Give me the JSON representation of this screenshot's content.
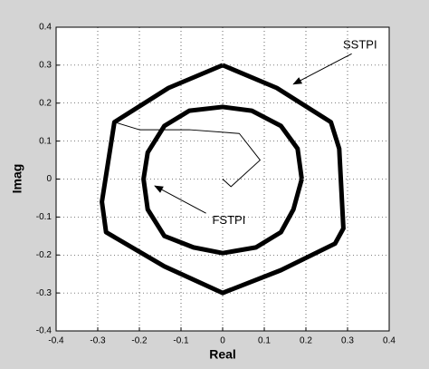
{
  "chart_data": {
    "type": "line",
    "x_label": "Real",
    "y_label": "Imag",
    "xlim": [
      -0.4,
      0.4
    ],
    "ylim": [
      -0.4,
      0.4
    ],
    "xticks": [
      -0.4,
      -0.3,
      -0.2,
      -0.1,
      0,
      0.1,
      0.2,
      0.3,
      0.4
    ],
    "yticks": [
      -0.4,
      -0.3,
      -0.2,
      -0.1,
      0,
      0.1,
      0.2,
      0.3,
      0.4
    ],
    "grid": true,
    "annotations": [
      "SSTPI",
      "FSTPI"
    ],
    "series": [
      {
        "color": "#000000",
        "width": 5,
        "x": [
          0,
          0.13,
          0.26,
          0.28,
          0.29,
          0.27,
          0.14,
          0,
          -0.14,
          -0.28,
          -0.29,
          -0.27,
          -0.26,
          -0.13,
          0
        ],
        "values": [
          0.3,
          0.24,
          0.15,
          0.08,
          -0.13,
          -0.17,
          -0.24,
          -0.3,
          -0.23,
          -0.14,
          -0.06,
          0.08,
          0.15,
          0.24,
          0.3
        ]
      },
      {
        "color": "#000000",
        "width": 5,
        "x": [
          0.19,
          0.18,
          0.14,
          0.07,
          0,
          -0.08,
          -0.14,
          -0.18,
          -0.19,
          -0.18,
          -0.14,
          -0.07,
          0,
          0.08,
          0.14,
          0.17,
          0.19
        ],
        "values": [
          0,
          0.08,
          0.14,
          0.18,
          0.19,
          0.18,
          0.14,
          0.07,
          0,
          -0.08,
          -0.15,
          -0.18,
          -0.195,
          -0.18,
          -0.14,
          -0.08,
          0
        ]
      },
      {
        "color": "#000000",
        "width": 1,
        "x": [
          0,
          0.02,
          0.09,
          0.04,
          -0.08,
          -0.2,
          -0.26
        ],
        "values": [
          0,
          -0.02,
          0.05,
          0.12,
          0.13,
          0.13,
          0.15
        ]
      }
    ]
  }
}
